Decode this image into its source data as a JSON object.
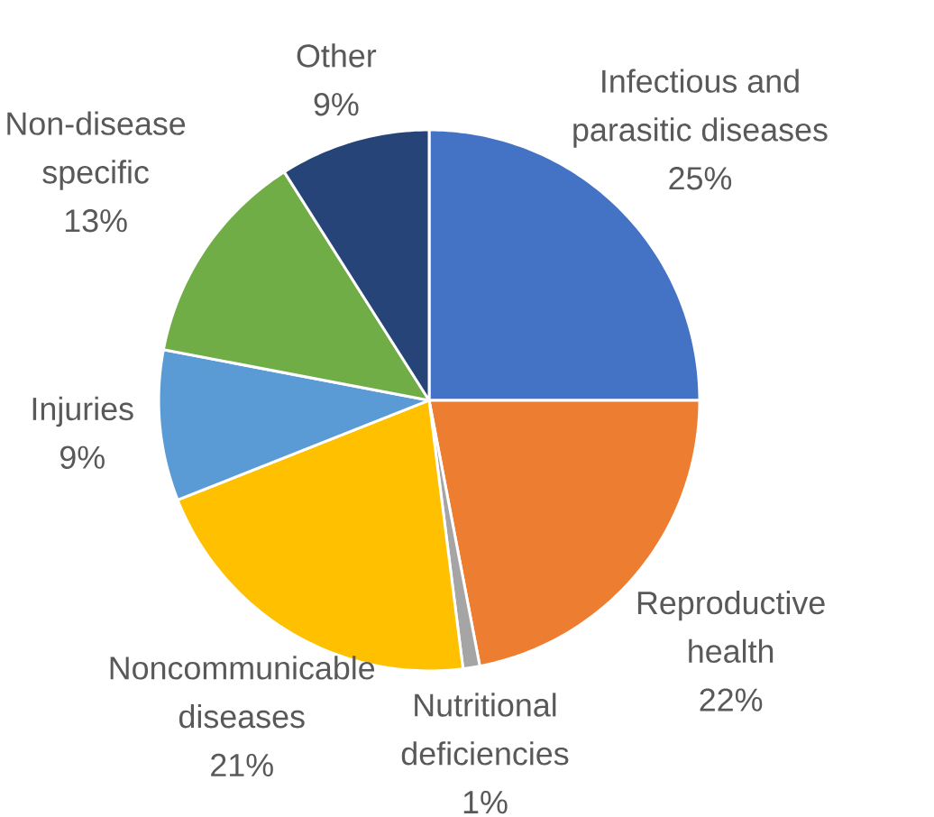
{
  "chart_data": {
    "type": "pie",
    "categories": [
      "Infectious and parasitic diseases",
      "Reproductive health",
      "Nutritional deficiencies",
      "Noncommunicable diseases",
      "Injuries",
      "Non-disease specific",
      "Other"
    ],
    "values": [
      25,
      22,
      1,
      21,
      9,
      13,
      9
    ],
    "colors": [
      "#4472c4",
      "#ed7d31",
      "#a5a5a5",
      "#ffc000",
      "#5b9bd5",
      "#70ad47",
      "#264478"
    ],
    "value_labels": [
      "25%",
      "22%",
      "1%",
      "21%",
      "9%",
      "13%",
      "9%"
    ]
  }
}
